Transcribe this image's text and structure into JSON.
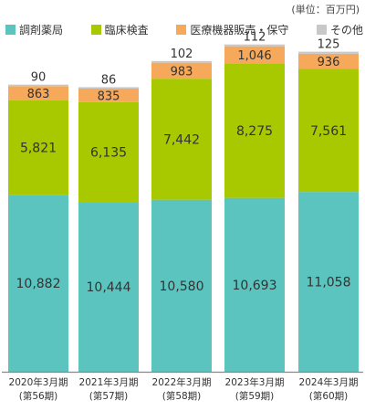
{
  "unit_note": "(単位：百万円)",
  "chart_data": {
    "type": "bar",
    "stacked": true,
    "title": "",
    "xlabel": "",
    "ylabel": "",
    "categories": [
      [
        "2020年3月期",
        "(第56期)"
      ],
      [
        "2021年3月期",
        "(第57期)"
      ],
      [
        "2022年3月期",
        "(第58期)"
      ],
      [
        "2023年3月期",
        "(第59期)"
      ],
      [
        "2024年3月期",
        "(第60期)"
      ]
    ],
    "series": [
      {
        "name": "調剤薬局",
        "color": "#5bc4bf",
        "values": [
          10882,
          10444,
          10580,
          10693,
          11058
        ]
      },
      {
        "name": "臨床検査",
        "color": "#a8c800",
        "values": [
          5821,
          6135,
          7442,
          8275,
          7561
        ]
      },
      {
        "name": "医療機器販売・保守",
        "color": "#f6a95a",
        "values": [
          863,
          835,
          983,
          1046,
          936
        ]
      },
      {
        "name": "その他",
        "color": "#c8c8c8",
        "values": [
          90,
          86,
          102,
          112,
          125
        ]
      }
    ],
    "data_labels": [
      [
        "10,882",
        "5,821",
        "863",
        "90"
      ],
      [
        "10,444",
        "6,135",
        "835",
        "86"
      ],
      [
        "10,580",
        "7,442",
        "983",
        "102"
      ],
      [
        "10,693",
        "8,275",
        "1,046",
        "112"
      ],
      [
        "11,058",
        "7,561",
        "936",
        "125"
      ]
    ],
    "ylim": [
      0,
      19940
    ],
    "grid": false,
    "legend_position": "top"
  }
}
